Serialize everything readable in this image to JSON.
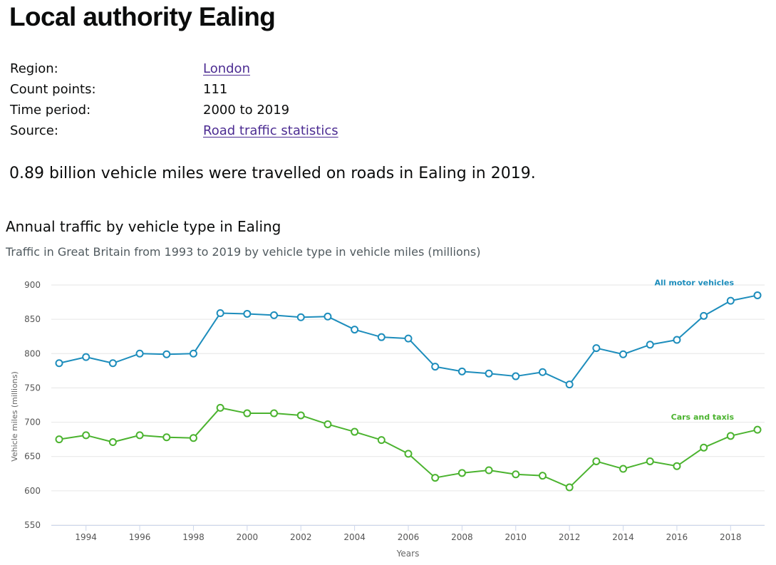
{
  "page": {
    "title": "Local authority Ealing",
    "summary": [
      {
        "key": "Region:",
        "value": "London",
        "link": true
      },
      {
        "key": "Count points:",
        "value": "111",
        "link": false
      },
      {
        "key": "Time period:",
        "value": "2000 to 2019",
        "link": false
      },
      {
        "key": "Source:",
        "value": "Road traffic statistics",
        "link": true
      }
    ],
    "headline": "0.89 billion vehicle miles were travelled on roads in Ealing in 2019."
  },
  "chart_data": {
    "type": "line",
    "title": "Annual traffic by vehicle type in Ealing",
    "subtitle": "Traffic in Great Britain from 1993 to 2019 by vehicle type in vehicle miles (millions)",
    "xlabel": "Years",
    "ylabel": "Vehicle miles (millions)",
    "ylim": [
      550,
      900
    ],
    "yticks": [
      550,
      600,
      650,
      700,
      750,
      800,
      850,
      900
    ],
    "xticks": [
      1994,
      1996,
      1998,
      2000,
      2002,
      2004,
      2006,
      2008,
      2010,
      2012,
      2014,
      2016,
      2018
    ],
    "x": [
      1993,
      1994,
      1995,
      1996,
      1997,
      1998,
      1999,
      2000,
      2001,
      2002,
      2003,
      2004,
      2005,
      2006,
      2007,
      2008,
      2009,
      2010,
      2011,
      2012,
      2013,
      2014,
      2015,
      2016,
      2017,
      2018,
      2019
    ],
    "grid": true,
    "legend": "inline labels at line ends",
    "series": [
      {
        "name": "All motor vehicles",
        "color": "#1d8dbc",
        "values": [
          786,
          795,
          786,
          800,
          799,
          800,
          859,
          858,
          856,
          853,
          854,
          835,
          824,
          822,
          781,
          774,
          771,
          767,
          773,
          755,
          808,
          799,
          813,
          820,
          855,
          877,
          885
        ]
      },
      {
        "name": "Cars and taxis",
        "color": "#4bb32f",
        "values": [
          675,
          681,
          671,
          681,
          678,
          677,
          721,
          713,
          713,
          710,
          697,
          686,
          674,
          654,
          619,
          626,
          630,
          624,
          622,
          605,
          643,
          632,
          643,
          636,
          663,
          680,
          689
        ]
      }
    ]
  }
}
